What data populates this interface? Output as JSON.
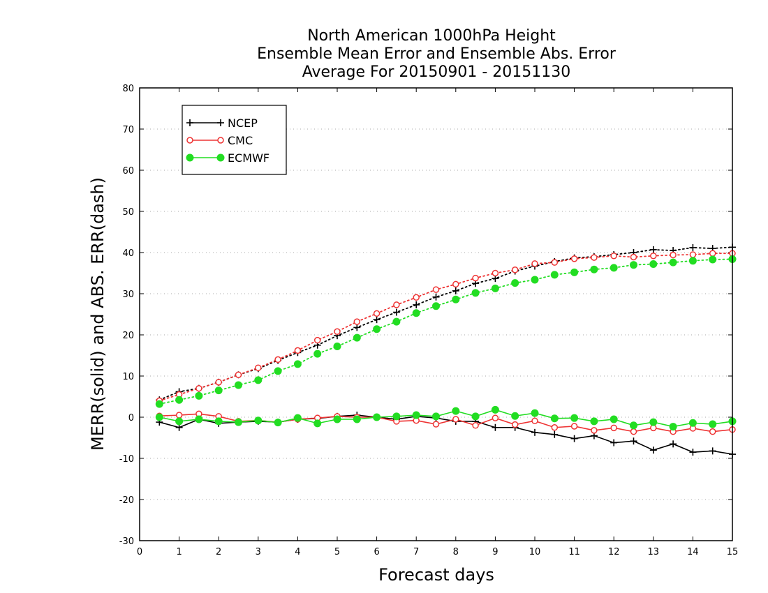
{
  "chart_data": {
    "type": "line",
    "title": [
      "North American 1000hPa Height",
      "Ensemble Mean Error and Ensemble Abs. Error",
      "Average For 20150901 - 20151130"
    ],
    "xlabel": "Forecast days",
    "ylabel": "MERR(solid) and ABS. ERR(dash)",
    "xlim": [
      0,
      15
    ],
    "ylim": [
      -30,
      80
    ],
    "xticks": [
      "0",
      "1",
      "2",
      "3",
      "4",
      "5",
      "6",
      "7",
      "8",
      "9",
      "10",
      "11",
      "12",
      "13",
      "14",
      "15"
    ],
    "yticks": [
      "-30",
      "-20",
      "-10",
      "0",
      "10",
      "20",
      "30",
      "40",
      "50",
      "60",
      "70",
      "80"
    ],
    "grid": "horizontal dotted",
    "legend_position": "top-left",
    "x": [
      0.5,
      1,
      1.5,
      2,
      2.5,
      3,
      3.5,
      4,
      4.5,
      5,
      5.5,
      6,
      6.5,
      7,
      7.5,
      8,
      8.5,
      9,
      9.5,
      10,
      10.5,
      11,
      11.5,
      12,
      12.5,
      13,
      13.5,
      14,
      14.5,
      15
    ],
    "series": [
      {
        "name": "NCEP",
        "color": "#000000",
        "marker": "plus",
        "merr": [
          -1.2,
          -2.5,
          -0.5,
          -1.5,
          -1.2,
          -1.0,
          -1.2,
          -0.5,
          -0.3,
          0.2,
          0.5,
          0.0,
          -0.5,
          0.2,
          -0.2,
          -1.0,
          -1.0,
          -2.5,
          -2.5,
          -3.7,
          -4.2,
          -5.2,
          -4.5,
          -6.2,
          -5.8,
          -8.0,
          -6.5,
          -8.5,
          -8.2,
          -9.0
        ],
        "abs_err": [
          4.2,
          6.2,
          7.0,
          8.5,
          10.3,
          11.8,
          13.8,
          15.7,
          17.5,
          19.8,
          21.8,
          23.7,
          25.5,
          27.3,
          29.2,
          30.7,
          32.5,
          33.7,
          35.5,
          36.7,
          37.8,
          38.7,
          39.0,
          39.5,
          40.0,
          40.7,
          40.5,
          41.2,
          41.0,
          41.3
        ]
      },
      {
        "name": "CMC",
        "color": "#ee3333",
        "marker": "open-circle",
        "merr": [
          0.3,
          0.5,
          0.8,
          0.2,
          -1.0,
          -0.8,
          -1.2,
          -0.5,
          -0.2,
          0.2,
          0.0,
          0.0,
          -1.0,
          -0.8,
          -1.7,
          -0.5,
          -2.0,
          -0.2,
          -1.8,
          -0.9,
          -2.5,
          -2.2,
          -3.2,
          -2.6,
          -3.5,
          -2.6,
          -3.5,
          -2.7,
          -3.5,
          -3.0
        ],
        "abs_err": [
          4.0,
          5.5,
          7.0,
          8.5,
          10.3,
          12.0,
          14.0,
          16.2,
          18.7,
          20.8,
          23.2,
          25.2,
          27.3,
          29.1,
          31.0,
          32.3,
          33.8,
          35.0,
          35.8,
          37.3,
          37.6,
          38.5,
          38.8,
          39.2,
          38.9,
          39.2,
          39.4,
          39.5,
          39.8,
          39.8
        ]
      },
      {
        "name": "ECMWF",
        "color": "#22dd22",
        "marker": "filled-circle",
        "merr": [
          0.0,
          -1.0,
          -0.5,
          -1.0,
          -1.2,
          -0.8,
          -1.3,
          -0.2,
          -1.5,
          -0.5,
          -0.5,
          0.0,
          0.2,
          0.5,
          0.2,
          1.5,
          0.2,
          1.8,
          0.3,
          1.0,
          -0.3,
          -0.2,
          -1.0,
          -0.5,
          -2.0,
          -1.2,
          -2.3,
          -1.4,
          -1.7,
          -1.0
        ],
        "abs_err": [
          3.2,
          4.2,
          5.2,
          6.5,
          7.8,
          9.0,
          11.2,
          12.9,
          15.4,
          17.2,
          19.3,
          21.4,
          23.2,
          25.3,
          27.0,
          28.6,
          30.2,
          31.3,
          32.6,
          33.4,
          34.6,
          35.2,
          35.9,
          36.3,
          37.0,
          37.2,
          37.6,
          38.0,
          38.3,
          38.4
        ]
      }
    ]
  }
}
